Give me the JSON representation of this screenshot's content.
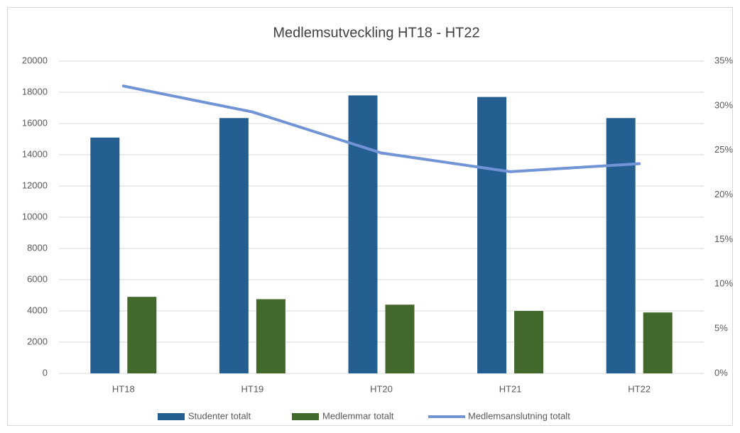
{
  "chart_data": {
    "type": "bar-line",
    "title": "Medlemsutveckling HT18 - HT22",
    "categories": [
      "HT18",
      "HT19",
      "HT20",
      "HT21",
      "HT22"
    ],
    "series": [
      {
        "name": "Studenter totalt",
        "type": "bar",
        "color": "#255e91",
        "values": [
          15100,
          16350,
          17800,
          17700,
          16350
        ]
      },
      {
        "name": "Medlemmar totalt",
        "type": "bar",
        "color": "#43682b",
        "values": [
          4900,
          4750,
          4400,
          4000,
          3900
        ]
      },
      {
        "name": "Medlemsanslutning totalt",
        "type": "line",
        "axis": "y2",
        "color": "#7094d6",
        "values": [
          32.2,
          29.3,
          24.7,
          22.6,
          23.5
        ]
      }
    ],
    "ylim": [
      0,
      20000
    ],
    "yticks": [
      0,
      2000,
      4000,
      6000,
      8000,
      10000,
      12000,
      14000,
      16000,
      18000,
      20000
    ],
    "y2lim": [
      0,
      35
    ],
    "y2ticks": [
      {
        "value": 0,
        "label": "0%"
      },
      {
        "value": 5,
        "label": "5%"
      },
      {
        "value": 10,
        "label": "10%"
      },
      {
        "value": 15,
        "label": "15%"
      },
      {
        "value": 20,
        "label": "20%"
      },
      {
        "value": 25,
        "label": "25%"
      },
      {
        "value": 30,
        "label": "30%"
      },
      {
        "value": 35,
        "label": "35%"
      }
    ],
    "grid": true,
    "legend": "bottom"
  }
}
